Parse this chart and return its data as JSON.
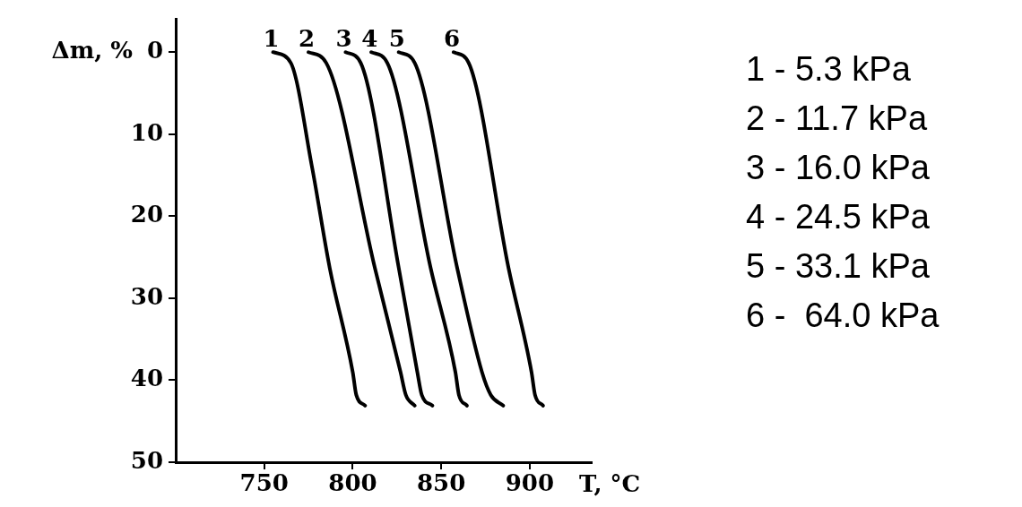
{
  "chart_data": {
    "type": "line",
    "xlabel": "T, °C",
    "ylabel": "Δm, %",
    "xlim": [
      700,
      935
    ],
    "xticks": [
      750,
      800,
      850,
      900
    ],
    "ylim": [
      50,
      -4
    ],
    "yticks": [
      0,
      10,
      20,
      30,
      40,
      50
    ],
    "grid": false,
    "legend": "right",
    "marker": "none",
    "line_style": "solid",
    "series": [
      {
        "name": "1 - 5.3 kPa",
        "color": "#000000",
        "x": [
          755,
          765,
          777,
          787,
          800,
          802,
          807
        ],
        "values": [
          0,
          1.3,
          14,
          26.3,
          39,
          41.8,
          43.1
        ]
      },
      {
        "name": "2 - 11.7 kPa",
        "color": "#000000",
        "x": [
          775,
          785,
          812.5,
          827,
          830,
          835
        ],
        "values": [
          0,
          1.3,
          26.3,
          39,
          41.8,
          43.1
        ]
      },
      {
        "name": "3 - 16.0 kPa",
        "color": "#000000",
        "x": [
          796,
          804.5,
          826,
          836.5,
          839,
          845
        ],
        "values": [
          0,
          1.3,
          26.3,
          39,
          41.8,
          43.1
        ]
      },
      {
        "name": "4 - 24.5 kPa",
        "color": "#000000",
        "x": [
          810.5,
          819.5,
          844,
          858,
          860,
          864.5
        ],
        "values": [
          0,
          1.3,
          26.3,
          39,
          41.8,
          43.1
        ]
      },
      {
        "name": "5 - 33.1 kPa",
        "color": "#000000",
        "x": [
          826,
          835,
          859,
          873,
          878,
          885
        ],
        "values": [
          0,
          1.3,
          26.3,
          39,
          41.8,
          43.1
        ]
      },
      {
        "name": "6 -  64.0 kPa",
        "color": "#000000",
        "x": [
          857,
          865.5,
          888,
          901,
          903,
          907.5
        ],
        "values": [
          0,
          1.3,
          26.3,
          39,
          41.8,
          43.1
        ]
      }
    ],
    "annotations": [
      "1",
      "2",
      "3",
      "4",
      "5",
      "6"
    ]
  }
}
